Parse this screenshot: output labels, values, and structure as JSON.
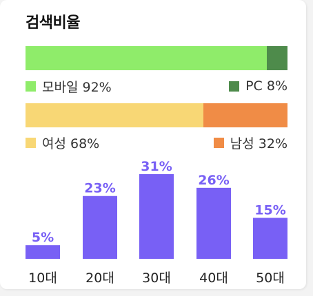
{
  "title": "검색비율",
  "colors": {
    "mobile": "#8fec6a",
    "pc": "#4e8b4b",
    "female": "#f8d775",
    "male": "#f08c46",
    "age_bar": "#7860f5",
    "age_label": "#7860f5"
  },
  "device": {
    "mobile_label": "모바일 92%",
    "pc_label": "PC 8%",
    "mobile_pct": 92,
    "pc_pct": 8
  },
  "gender": {
    "female_label": "여성 68%",
    "male_label": "남성 32%",
    "female_pct": 68,
    "male_pct": 32
  },
  "chart_data": {
    "type": "bar",
    "categories": [
      "10대",
      "20대",
      "30대",
      "40대",
      "50대"
    ],
    "values": [
      5,
      23,
      31,
      26,
      15
    ],
    "value_labels": [
      "5%",
      "23%",
      "31%",
      "26%",
      "15%"
    ],
    "title": "",
    "xlabel": "",
    "ylabel": "",
    "ylim": [
      0,
      31
    ],
    "grid": false
  }
}
